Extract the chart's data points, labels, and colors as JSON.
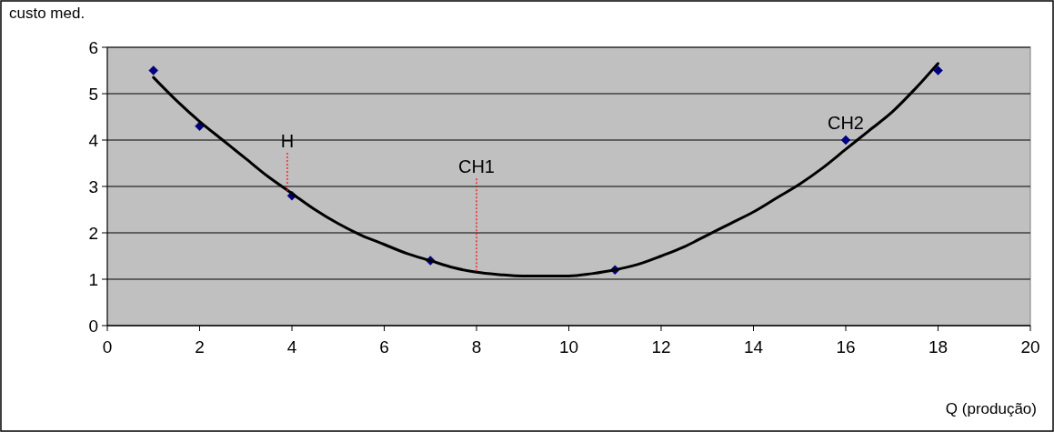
{
  "chart_data": {
    "type": "scatter",
    "xlabel": "Q (produção)",
    "ylabel": "custo med.",
    "xlim": [
      0,
      20
    ],
    "xticks": [
      0,
      2,
      4,
      6,
      8,
      10,
      12,
      14,
      16,
      18,
      20
    ],
    "ylim": [
      0,
      6
    ],
    "yticks": [
      0,
      1,
      2,
      3,
      4,
      5,
      6
    ],
    "grid": "y",
    "marker": "diamond",
    "series": [
      {
        "color": "#000080",
        "x": [
          1,
          2,
          4,
          7,
          11,
          16,
          18
        ],
        "values": [
          5.5,
          4.3,
          2.8,
          1.4,
          1.2,
          4.0,
          5.5
        ]
      },
      {
        "type": "line",
        "color": "#000000",
        "line_style": "solid",
        "marker": "none",
        "x": [
          1,
          1.5,
          2,
          2.5,
          3,
          3.5,
          4,
          4.5,
          5,
          5.5,
          6,
          6.5,
          7,
          7.5,
          8,
          8.5,
          9,
          9.5,
          10,
          10.5,
          11,
          11.5,
          12,
          12.5,
          13,
          13.5,
          14,
          14.5,
          15,
          15.5,
          16,
          16.5,
          17,
          17.5,
          18
        ],
        "values": [
          5.35,
          4.85,
          4.4,
          4.0,
          3.6,
          3.2,
          2.85,
          2.5,
          2.2,
          1.95,
          1.75,
          1.55,
          1.4,
          1.25,
          1.15,
          1.1,
          1.07,
          1.07,
          1.07,
          1.12,
          1.2,
          1.32,
          1.5,
          1.7,
          1.95,
          2.2,
          2.45,
          2.75,
          3.05,
          3.4,
          3.8,
          4.2,
          4.6,
          5.1,
          5.65
        ]
      }
    ],
    "annotations": [
      {
        "text": "H",
        "x": 3.9,
        "y": 2.9
      },
      {
        "text": "CH1",
        "x": 8,
        "y": 1.15
      },
      {
        "text": "CH2",
        "x": 16,
        "y": 4.0
      }
    ]
  }
}
